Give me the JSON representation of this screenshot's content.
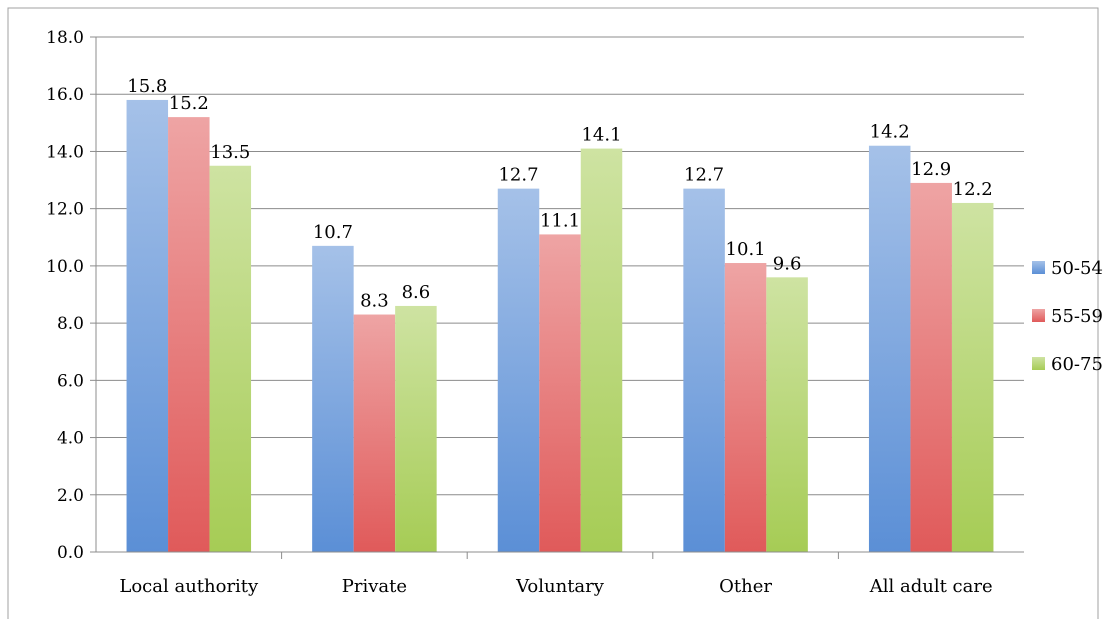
{
  "chart_data": {
    "type": "bar",
    "title": "",
    "xlabel": "",
    "ylabel": "",
    "categories": [
      "Local authority",
      "Private",
      "Voluntary",
      "Other",
      "All adult care"
    ],
    "series": [
      {
        "name": "50-54",
        "values": [
          15.8,
          10.7,
          12.7,
          12.7,
          14.2
        ],
        "color": "#5b8fd6",
        "label_text": [
          "15.8",
          "10.7",
          "12.7",
          "12.7",
          "14.2"
        ]
      },
      {
        "name": "55-59",
        "values": [
          15.2,
          8.3,
          11.1,
          10.1,
          12.9
        ],
        "color": "#e05a5a",
        "label_text": [
          "15.2",
          "8.3",
          "11.1",
          "10.1",
          "12.9"
        ]
      },
      {
        "name": "60-75",
        "values": [
          13.5,
          8.6,
          14.1,
          9.6,
          12.2
        ],
        "color": "#a6cc55",
        "label_text": [
          "13.5",
          "8.6",
          "14.1",
          "9.6",
          "12.2"
        ]
      }
    ],
    "ylim": [
      0,
      18
    ],
    "yticks": [
      "0.0",
      "2.0",
      "4.0",
      "6.0",
      "8.0",
      "10.0",
      "12.0",
      "14.0",
      "16.0",
      "18.0"
    ],
    "grid": true,
    "legend_position": "right"
  }
}
